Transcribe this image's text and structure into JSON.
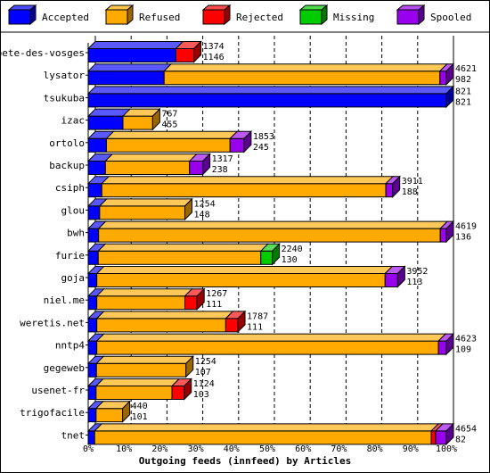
{
  "chart_data": {
    "type": "bar",
    "orientation": "horizontal",
    "stacked": true,
    "style": "3d",
    "xlabel": "Outgoing feeds (innfeed) by Articles",
    "xlim": [
      0,
      100
    ],
    "x_ticks": [
      "0%",
      "10%",
      "20%",
      "30%",
      "40%",
      "50%",
      "60%",
      "70%",
      "80%",
      "90%",
      "100%"
    ],
    "grid": "vertical-dashed",
    "legend_position": "top",
    "series": [
      {
        "name": "Accepted",
        "color": "#0000ff"
      },
      {
        "name": "Refused",
        "color": "#ffaa00"
      },
      {
        "name": "Rejected",
        "color": "#ff0000"
      },
      {
        "name": "Missing",
        "color": "#00cc00"
      },
      {
        "name": "Spooled",
        "color": "#9900ee"
      }
    ],
    "rows": [
      {
        "name": "bete-des-vosges",
        "percent": [
          24.5,
          0,
          5,
          0,
          0
        ],
        "offered": "1374",
        "accepted": "1146"
      },
      {
        "name": "lysator",
        "percent": [
          21.2,
          77,
          0,
          0,
          1.8
        ],
        "offered": "4621",
        "accepted": "982"
      },
      {
        "name": "tsukuba",
        "percent": [
          100,
          0,
          0,
          0,
          0
        ],
        "offered": "821",
        "accepted": "821"
      },
      {
        "name": "izac",
        "percent": [
          9.7,
          8.3,
          0,
          0,
          0
        ],
        "offered": "767",
        "accepted": "455"
      },
      {
        "name": "ortolo",
        "percent": [
          5.1,
          34.5,
          0,
          0,
          3.9
        ],
        "offered": "1853",
        "accepted": "245"
      },
      {
        "name": "backup",
        "percent": [
          4.8,
          23.5,
          0,
          0,
          3.7
        ],
        "offered": "1317",
        "accepted": "238"
      },
      {
        "name": "csiph",
        "percent": [
          3.8,
          79.3,
          0,
          0,
          1.9
        ],
        "offered": "3911",
        "accepted": "188"
      },
      {
        "name": "glou",
        "percent": [
          3.2,
          23.8,
          0,
          0,
          0
        ],
        "offered": "1254",
        "accepted": "148"
      },
      {
        "name": "bwh",
        "percent": [
          2.9,
          95.4,
          0,
          0,
          1.7
        ],
        "offered": "4619",
        "accepted": "136"
      },
      {
        "name": "furie",
        "percent": [
          2.8,
          45.4,
          0,
          3.2,
          0
        ],
        "offered": "2240",
        "accepted": "130"
      },
      {
        "name": "goja",
        "percent": [
          2.4,
          80.5,
          0,
          0,
          3.5
        ],
        "offered": "3952",
        "accepted": "113"
      },
      {
        "name": "niel.me",
        "percent": [
          2.4,
          24.6,
          3.4,
          0,
          0
        ],
        "offered": "1267",
        "accepted": "111"
      },
      {
        "name": "weretis.net",
        "percent": [
          2.4,
          36,
          3.4,
          0,
          0
        ],
        "offered": "1787",
        "accepted": "111"
      },
      {
        "name": "nntp4",
        "percent": [
          2.4,
          95.4,
          0,
          0,
          2.2
        ],
        "offered": "4623",
        "accepted": "109"
      },
      {
        "name": "gegeweb",
        "percent": [
          2.3,
          25,
          0,
          0,
          0
        ],
        "offered": "1254",
        "accepted": "107"
      },
      {
        "name": "usenet-fr",
        "percent": [
          2.2,
          21.2,
          3.4,
          0,
          0
        ],
        "offered": "1124",
        "accepted": "103"
      },
      {
        "name": "trigofacile",
        "percent": [
          2.2,
          7.4,
          0,
          0,
          0
        ],
        "offered": "440",
        "accepted": "101"
      },
      {
        "name": "tnet",
        "percent": [
          1.8,
          94,
          1.2,
          0,
          3
        ],
        "offered": "4654",
        "accepted": "82"
      }
    ]
  }
}
